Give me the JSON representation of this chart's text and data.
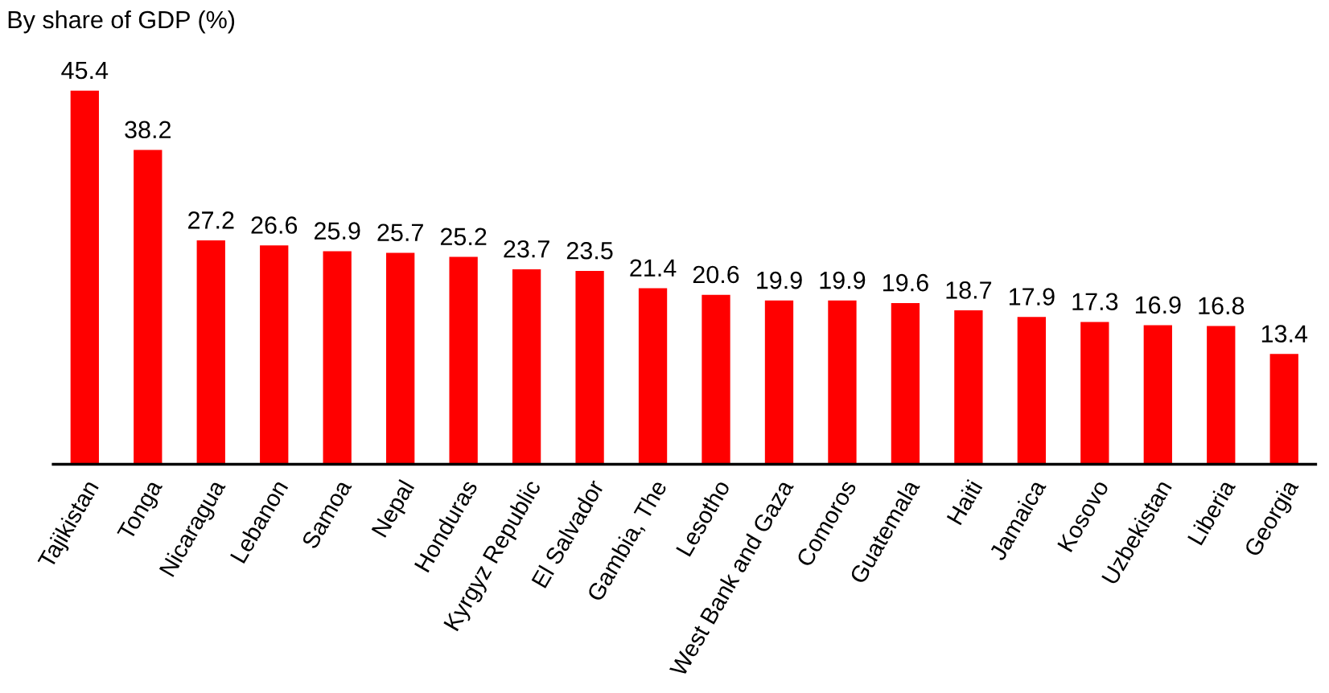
{
  "chart_data": {
    "type": "bar",
    "title": "By share of GDP (%)",
    "categories": [
      "Tajikistan",
      "Tonga",
      "Nicaragua",
      "Lebanon",
      "Samoa",
      "Nepal",
      "Honduras",
      "Kyrgyz Republic",
      "El Salvador",
      "Gambia, The",
      "Lesotho",
      "West Bank and Gaza",
      "Comoros",
      "Guatemala",
      "Haiti",
      "Jamaica",
      "Kosovo",
      "Uzbekistan",
      "Liberia",
      "Georgia"
    ],
    "values": [
      45.4,
      38.2,
      27.2,
      26.6,
      25.9,
      25.7,
      25.2,
      23.7,
      23.5,
      21.4,
      20.6,
      19.9,
      19.9,
      19.6,
      18.7,
      17.9,
      17.3,
      16.9,
      16.8,
      13.4
    ],
    "color": "#ff0000",
    "data_labels": true,
    "grid": false,
    "legend": false
  }
}
